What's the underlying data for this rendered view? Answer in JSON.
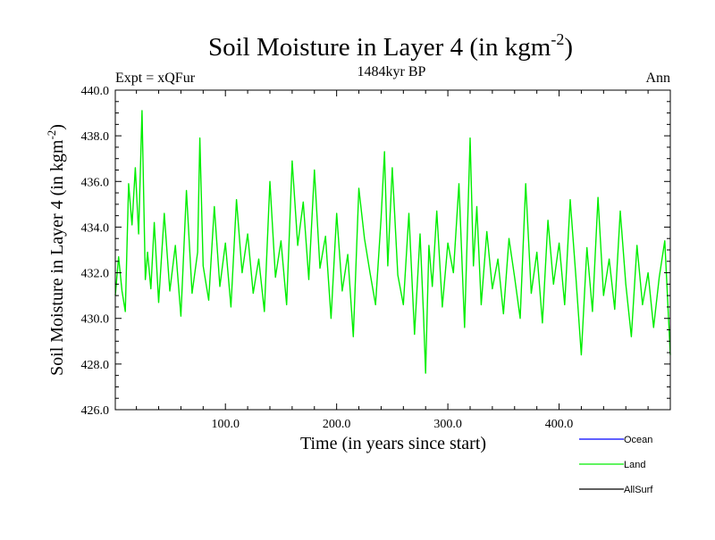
{
  "colors": {
    "background": "#ffffff",
    "axis": "#000000",
    "land": "#00ee00",
    "ocean": "#0000ff",
    "allsurf": "#000000"
  },
  "chart_data": {
    "type": "line",
    "title_main": "Soil Moisture in Layer 4 (in kgm",
    "title_sup": "-2",
    "title_close": ")",
    "subtitle": "1484kyr BP",
    "left_label": "Expt = xQFur",
    "right_label": "Ann",
    "xlabel": "Time (in years since start)",
    "ylabel_main": "Soil Moisture in Layer 4 (in kgm",
    "ylabel_sup": "-2",
    "ylabel_close": ")",
    "xlim": [
      1,
      500
    ],
    "ylim": [
      426.0,
      440.0
    ],
    "xticks": [
      100,
      200,
      300,
      400
    ],
    "xtick_labels": [
      "100.0",
      "200.0",
      "300.0",
      "400.0"
    ],
    "yticks": [
      426,
      428,
      430,
      432,
      434,
      436,
      438,
      440
    ],
    "ytick_labels": [
      "426.0",
      "428.0",
      "430.0",
      "432.0",
      "434.0",
      "436.0",
      "438.0",
      "440.0"
    ],
    "legend": [
      {
        "name": "Ocean",
        "color": "#0000ff"
      },
      {
        "name": "Land",
        "color": "#00ee00"
      },
      {
        "name": "AllSurf",
        "color": "#000000"
      }
    ],
    "series": [
      {
        "name": "Land",
        "color": "#00ee00",
        "x": [
          1,
          4,
          7,
          10,
          13,
          16,
          19,
          22,
          25,
          28,
          30,
          33,
          36,
          40,
          45,
          50,
          55,
          60,
          65,
          70,
          75,
          77,
          80,
          85,
          90,
          95,
          100,
          105,
          110,
          115,
          120,
          125,
          130,
          135,
          140,
          145,
          150,
          155,
          160,
          165,
          170,
          175,
          180,
          185,
          190,
          195,
          200,
          205,
          210,
          215,
          220,
          225,
          230,
          235,
          240,
          243,
          246,
          250,
          255,
          260,
          265,
          270,
          275,
          278,
          280,
          283,
          286,
          290,
          295,
          300,
          305,
          310,
          315,
          320,
          323,
          326,
          330,
          335,
          340,
          345,
          350,
          355,
          360,
          365,
          370,
          375,
          380,
          385,
          390,
          395,
          400,
          405,
          410,
          415,
          420,
          425,
          430,
          435,
          440,
          445,
          450,
          455,
          460,
          465,
          470,
          475,
          480,
          485,
          490,
          495,
          500
        ],
        "y": [
          431.0,
          432.7,
          431.2,
          430.3,
          435.9,
          434.1,
          436.6,
          433.7,
          439.1,
          431.7,
          432.9,
          431.3,
          434.2,
          430.7,
          434.6,
          431.2,
          433.2,
          430.1,
          435.6,
          431.1,
          432.9,
          437.9,
          432.3,
          430.8,
          434.9,
          431.4,
          433.3,
          430.5,
          435.2,
          432.0,
          433.7,
          431.1,
          432.6,
          430.3,
          436.0,
          431.8,
          433.4,
          430.6,
          436.9,
          433.2,
          435.1,
          431.7,
          436.5,
          432.2,
          433.6,
          430.0,
          434.6,
          431.2,
          432.8,
          429.2,
          435.7,
          433.5,
          432.0,
          430.6,
          434.4,
          437.3,
          432.3,
          436.6,
          431.9,
          430.6,
          434.6,
          429.3,
          433.7,
          430.3,
          427.6,
          433.2,
          431.4,
          434.7,
          430.5,
          433.3,
          432.0,
          435.9,
          429.6,
          437.9,
          432.3,
          434.9,
          430.6,
          433.8,
          431.3,
          432.6,
          430.2,
          433.5,
          431.8,
          430.0,
          435.9,
          431.1,
          432.9,
          429.8,
          434.3,
          431.5,
          433.3,
          430.6,
          435.2,
          431.9,
          428.4,
          433.1,
          430.3,
          435.3,
          431.0,
          432.6,
          430.4,
          434.7,
          431.5,
          429.2,
          433.2,
          430.6,
          432.0,
          429.6,
          431.8,
          433.4,
          428.4
        ]
      }
    ]
  }
}
